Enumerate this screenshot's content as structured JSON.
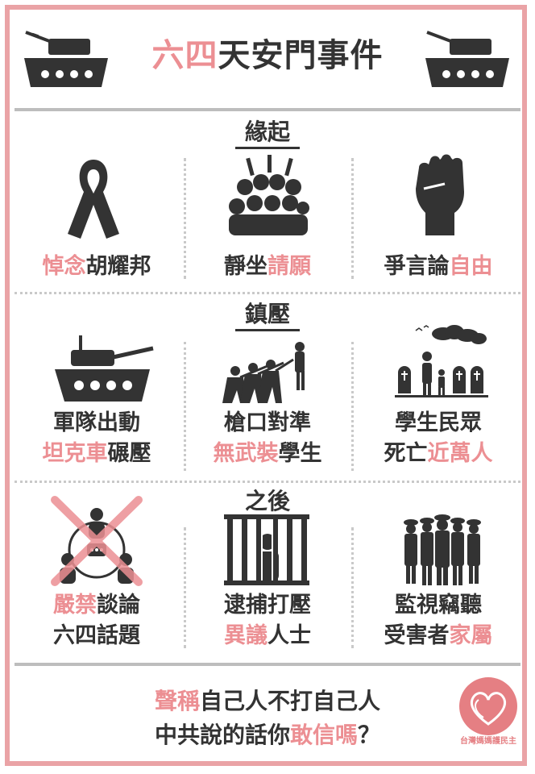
{
  "title": {
    "part1": "六四",
    "part2": "天安門事件"
  },
  "sections": {
    "s1": "緣起",
    "s2": "鎮壓",
    "s3": "之後"
  },
  "captions": {
    "c1": {
      "a": "悼念",
      "b": "胡耀邦"
    },
    "c2": {
      "a": "靜坐",
      "b": "請願"
    },
    "c3": {
      "a": "爭言論",
      "b": "自由"
    },
    "c4": {
      "l1": "軍隊出動",
      "a": "坦克車",
      "b": "碾壓"
    },
    "c5": {
      "l1": "槍口對準",
      "a": "無武裝",
      "b": "學生"
    },
    "c6": {
      "l1": "學生民眾",
      "a": "死亡",
      "b": "近萬人"
    },
    "c7": {
      "a": "嚴禁",
      "b": "談論",
      "l2": "六四話題"
    },
    "c8": {
      "l1": "逮捕打壓",
      "a": "異議",
      "b": "人士"
    },
    "c9": {
      "l1": "監視竊聽",
      "a": "受害者",
      "b": "家屬"
    }
  },
  "bottom": {
    "l1a": "聲稱",
    "l1b": "自己人不打自己人",
    "l2a": "中共說的話你",
    "l2b": "敢信嗎",
    "l2c": "？"
  },
  "logo": {
    "text": "台灣媽媽護民主"
  },
  "colors": {
    "accent": "#ec8f93",
    "dark": "#333333",
    "border": "#eaa3a6"
  },
  "icons": [
    "tank-icon",
    "ribbon-icon",
    "crowd-icon",
    "fist-icon",
    "soldiers-icon",
    "grave-icon",
    "no-talk-icon",
    "prison-icon",
    "police-icon",
    "heart-logo-icon"
  ]
}
